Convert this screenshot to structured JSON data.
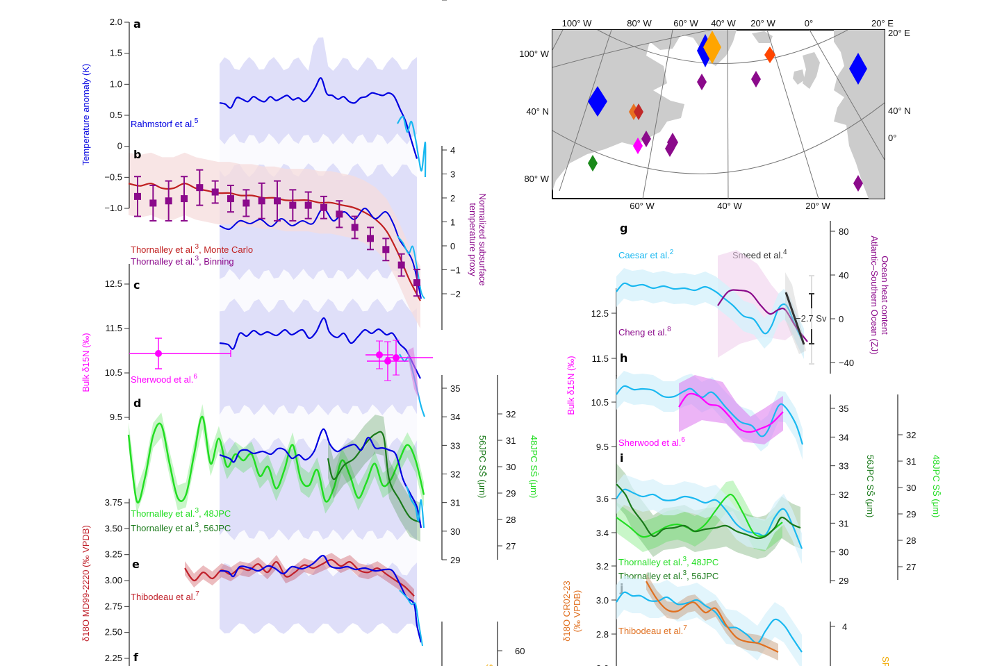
{
  "colors": {
    "rahmstorf": "#0000e0",
    "rahmstorf_band": "#dcdcf8",
    "caesar": "#1ab8f0",
    "caesar_band": "#d6f1fb",
    "montecarlo": "#c02020",
    "montecarlo_band": "#f6dcdc",
    "binning": "#8b0a8b",
    "sherwood": "#ff00ff",
    "jpc48": "#22dd22",
    "jpc56": "#1a7a1a",
    "thibodeau": "#c0202a",
    "thibodeau_j": "#e07020",
    "cheng": "#8b0a8b",
    "smeed": "#333333",
    "land": "#cccccc",
    "sf_orange": "#f0a800"
  },
  "chart_data": [
    {
      "id": "a",
      "type": "line",
      "panel_label": "a",
      "ylabel": "Temperature anomaly (K)",
      "yticks": [
        "2.0",
        "1.5",
        "1.0",
        "0.5",
        "0",
        "−0.5",
        "−1.0"
      ],
      "ylim": [
        -1.0,
        2.0
      ],
      "legend": [
        {
          "text": "Rahmstorf et al.",
          "sup": "5",
          "color": "rahmstorf"
        }
      ],
      "series": [
        {
          "name": "Rahmstorf et al.",
          "values": [
            0.7,
            0.68,
            0.62,
            0.78,
            0.76,
            0.72,
            0.8,
            0.75,
            0.72,
            0.8,
            0.74,
            0.78,
            0.82,
            0.75,
            0.78,
            0.72,
            0.8,
            0.95,
            1.1,
            0.85,
            0.82,
            0.76,
            0.8,
            0.72,
            0.7,
            0.78,
            0.8,
            0.86,
            0.84,
            0.82,
            0.86,
            0.8,
            0.6,
            0.4,
            0.1,
            -0.2
          ]
        }
      ]
    },
    {
      "id": "b",
      "type": "line",
      "panel_label": "b",
      "ylabel_right": "Normalized subsurface temperature proxy",
      "yticks_right": [
        "4",
        "3",
        "2",
        "1",
        "0",
        "−1",
        "−2"
      ],
      "ylim_right": [
        -2.5,
        4
      ],
      "legend": [
        {
          "text": "Thornalley et al.",
          "sup": "3",
          "suffix": ", Monte Carlo",
          "color": "montecarlo"
        },
        {
          "text": "Thornalley et al.",
          "sup": "3",
          "suffix": ", Binning",
          "color": "binning"
        }
      ],
      "series": [
        {
          "name": "Monte Carlo",
          "values": [
            2.6,
            2.5,
            2.6,
            2.4,
            2.4,
            2.6,
            2.4,
            2.3,
            2.2,
            2.2,
            2.1,
            2.1,
            2.0,
            2.0,
            1.9,
            1.9,
            1.9,
            1.8,
            1.8,
            1.7,
            1.6,
            1.4,
            1.1,
            0.6,
            -0.3,
            -1.4,
            -2.3
          ]
        },
        {
          "name": "Binning",
          "points": [
            1.9,
            1.6,
            1.7,
            1.8,
            2.3,
            2.1,
            1.8,
            1.6,
            1.7,
            1.7,
            1.5,
            1.5,
            1.4,
            1.1,
            0.5,
            0.0,
            -0.5,
            -1.2,
            -2.0
          ],
          "errors": [
            0.9,
            0.8,
            0.9,
            1.0,
            0.8,
            0.5,
            0.6,
            0.6,
            0.8,
            0.9,
            0.7,
            0.6,
            0.5,
            0.6,
            0.5,
            0.5,
            0.5,
            0.5,
            0.6
          ]
        }
      ]
    },
    {
      "id": "c",
      "type": "scatter",
      "panel_label": "c",
      "ylabel": "Bulk δ15N (‰)",
      "yticks": [
        "12.5",
        "11.5",
        "10.5",
        "9.5"
      ],
      "ylim": [
        9.5,
        12.5
      ],
      "legend": [
        {
          "text": "Sherwood et al.",
          "sup": "6",
          "color": "sherwood"
        }
      ],
      "points": [
        {
          "y": 10.95,
          "yerr": 0.35,
          "xerr_wide": true
        },
        {
          "y": 10.9,
          "yerr": 0.4
        },
        {
          "y": 10.75,
          "yerr": 0.45
        },
        {
          "y": 10.8,
          "yerr": 0.35
        }
      ]
    },
    {
      "id": "d",
      "type": "line",
      "panel_label": "d",
      "ylabel_right_1": "56JPC SS̄ (μm)",
      "yticks_right_1": [
        "35",
        "34",
        "33",
        "32",
        "31",
        "30",
        "29"
      ],
      "ylabel_right_2": "48JPC SS̄ (μm)",
      "yticks_right_2": [
        "32",
        "31",
        "30",
        "29",
        "28",
        "27"
      ],
      "legend": [
        {
          "text": "Thornalley et al.",
          "sup": "3",
          "suffix": ", 48JPC",
          "color": "jpc48"
        },
        {
          "text": "Thornalley et al.",
          "sup": "3",
          "suffix": ", 56JPC",
          "color": "jpc56"
        }
      ],
      "series": [
        {
          "name": "48JPC",
          "values": [
            31.2,
            29.8,
            30.5,
            31.9,
            32.0,
            31.0,
            28.5,
            30.0,
            31.3,
            31.6,
            31.0,
            31.8,
            30.9,
            31.3,
            31.1,
            31.3,
            30.6,
            30.9,
            30.2,
            30.8,
            31.6,
            30.5,
            30.3,
            30.8,
            29.8,
            30.2,
            31.1,
            30.6,
            29.9,
            30.4,
            31.0,
            30.3,
            30.5,
            31.1,
            31.6,
            31.1,
            30.0
          ]
        },
        {
          "name": "56JPC",
          "values": [
            31.1,
            30.6,
            31.2,
            31.5,
            32.2,
            31.0,
            30.3
          ]
        }
      ]
    },
    {
      "id": "e",
      "type": "line",
      "panel_label": "e",
      "ylabel": "δ18O MD99-2220 (‰ VPDB)",
      "yticks": [
        "3.75",
        "3.50",
        "3.25",
        "3.00",
        "2.75",
        "2.50",
        "2.25"
      ],
      "ylim": [
        2.25,
        3.75
      ],
      "legend": [
        {
          "text": "Thibodeau et al.",
          "sup": "7",
          "color": "thibodeau"
        }
      ],
      "series": [
        {
          "name": "Thibodeau et al.",
          "values": [
            3.12,
            3.0,
            3.08,
            3.02,
            3.1,
            3.06,
            3.12,
            3.1,
            3.16,
            3.08,
            3.18,
            3.04,
            3.08,
            3.15,
            3.12,
            3.16,
            3.2,
            3.14,
            3.18,
            3.1,
            3.08,
            3.12,
            3.06,
            3.0,
            2.94,
            2.85
          ]
        }
      ]
    },
    {
      "id": "f",
      "type": "line",
      "panel_label": "f",
      "yticks_right_1": [
        "4"
      ],
      "yticks_right_2": [
        "60"
      ]
    },
    {
      "id": "g",
      "type": "line",
      "panel_label": "g",
      "ylabel_right": "Ocean heat content Atlantic–Southern Ocean (ZJ)",
      "yticks_right": [
        "80",
        "40",
        "0",
        "−40"
      ],
      "ylim_right": [
        -40,
        80
      ],
      "legend": [
        {
          "text": "Caesar et al.",
          "sup": "2",
          "color": "caesar"
        },
        {
          "text": "Smeed et al.",
          "sup": "4",
          "color": "smeed"
        },
        {
          "text": "Cheng et al.",
          "sup": "8",
          "color": "cheng"
        }
      ],
      "annotation": "−2.7 Sv",
      "series": [
        {
          "name": "Caesar et al.",
          "values": [
            12.9,
            13.05,
            12.95,
            13.0,
            12.92,
            12.97,
            12.93,
            12.98,
            12.92,
            12.97,
            12.8,
            12.5,
            12.35,
            12.1,
            12.2,
            12.6,
            12.3,
            11.9
          ]
        },
        {
          "name": "Cheng et al.",
          "values": [
            12.8,
            12.95,
            12.93,
            12.82,
            12.6,
            12.62,
            12.55,
            12.2
          ]
        }
      ]
    },
    {
      "id": "h",
      "type": "line",
      "panel_label": "h",
      "ylabel": "Bulk δ15N (‰)",
      "yticks": [
        "12.5",
        "11.5",
        "10.5",
        "9.5"
      ],
      "ylim": [
        9.5,
        12.5
      ],
      "legend": [
        {
          "text": "Sherwood et al.",
          "sup": "6",
          "color": "sherwood"
        }
      ],
      "series": [
        {
          "name": "Caesar et al.",
          "values": [
            10.65,
            10.85,
            10.75,
            10.78,
            10.62,
            10.74,
            10.7,
            10.55,
            10.4,
            10.0,
            9.75,
            10.12,
            10.0,
            9.55
          ]
        },
        {
          "name": "Sherwood et al.",
          "values": [
            10.4,
            10.6,
            10.55,
            10.38,
            10.0,
            9.8,
            9.9,
            10.3
          ]
        }
      ]
    },
    {
      "id": "i",
      "type": "line",
      "panel_label": "i",
      "yticks": [
        "3.6",
        "3.4",
        "3.2"
      ],
      "ylim": [
        3.2,
        3.6
      ],
      "ylabel_right_1": "56JPC SS̄ (μm)",
      "yticks_right_1": [
        "35",
        "34",
        "33",
        "32",
        "31",
        "30",
        "29"
      ],
      "ylabel_right_2": "48JPC SS̄ (μm)",
      "yticks_right_2": [
        "32",
        "31",
        "30",
        "29",
        "28",
        "27"
      ],
      "legend": [
        {
          "text": "Thornalley et al.",
          "sup": "3",
          "suffix": ", 48JPC",
          "color": "jpc48"
        },
        {
          "text": "Thornalley et al.",
          "sup": "3",
          "suffix": ", 56JPC",
          "color": "jpc56"
        }
      ],
      "series": [
        {
          "name": "Caesar et al.",
          "values": [
            3.6,
            3.62,
            3.6,
            3.61,
            3.58,
            3.6,
            3.57,
            3.5,
            3.42,
            3.36,
            3.48,
            3.3
          ]
        },
        {
          "name": "48JPC",
          "values": [
            3.46,
            3.37,
            3.36,
            3.42,
            3.39,
            3.44,
            3.57,
            3.58,
            3.38,
            3.45
          ]
        },
        {
          "name": "56JPC",
          "values": [
            3.66,
            3.5,
            3.38,
            3.44,
            3.43,
            3.41,
            3.42,
            3.38,
            3.47,
            3.41
          ]
        }
      ]
    },
    {
      "id": "j",
      "type": "line",
      "panel_label": "j",
      "ylabel": "δ18O CR02-23 (‰ VPDB)",
      "yticks": [
        "3.0",
        "2.8",
        "2.6"
      ],
      "ylim": [
        2.6,
        3.1
      ],
      "yticks_right_1": [
        "4"
      ],
      "legend": [
        {
          "text": "Thibodeau et al.",
          "sup": "7",
          "color": "thibodeau_j"
        }
      ],
      "series": [
        {
          "name": "Caesar et al.",
          "values": [
            2.98,
            3.04,
            3.01,
            3.02,
            2.98,
            3.01,
            2.97,
            3.0,
            2.9,
            2.82,
            2.74,
            2.93,
            2.69
          ]
        },
        {
          "name": "Thibodeau et al.",
          "values": [
            3.1,
            2.95,
            2.96,
            3.0,
            2.92,
            2.94,
            2.82,
            2.73,
            2.73,
            2.7
          ]
        }
      ],
      "right_label_partial": "SF"
    }
  ],
  "map": {
    "top_labels": [
      "100° W",
      "80° W",
      "60° W",
      "40° W",
      "20° W",
      "0°",
      "20° E"
    ],
    "bottom_labels": [
      "60° W",
      "40° W",
      "20° W"
    ],
    "left_labels": [
      "100° W",
      "40° N",
      "80° W"
    ],
    "right_labels": [
      "20° E",
      "40° N",
      "0°"
    ],
    "markers": [
      {
        "color": "#0000ff",
        "size": "large"
      },
      {
        "color": "#0000ff",
        "size": "large"
      },
      {
        "color": "#ffa500",
        "size": "large"
      },
      {
        "color": "#0000ff",
        "size": "large"
      },
      {
        "color": "#ff4500",
        "size": "small"
      },
      {
        "color": "#8b0a8b",
        "size": "small"
      },
      {
        "color": "#8b0a8b",
        "size": "small"
      },
      {
        "color": "#e87020",
        "size": "small"
      },
      {
        "color": "#c02828",
        "size": "small"
      },
      {
        "color": "#ff00ff",
        "size": "small"
      },
      {
        "color": "#8b0a8b",
        "size": "small"
      },
      {
        "color": "#8b0a8b",
        "size": "small"
      },
      {
        "color": "#8b0a8b",
        "size": "small"
      },
      {
        "color": "#1a8a1a",
        "size": "small"
      },
      {
        "color": "#8b0a8b",
        "size": "small"
      }
    ]
  }
}
